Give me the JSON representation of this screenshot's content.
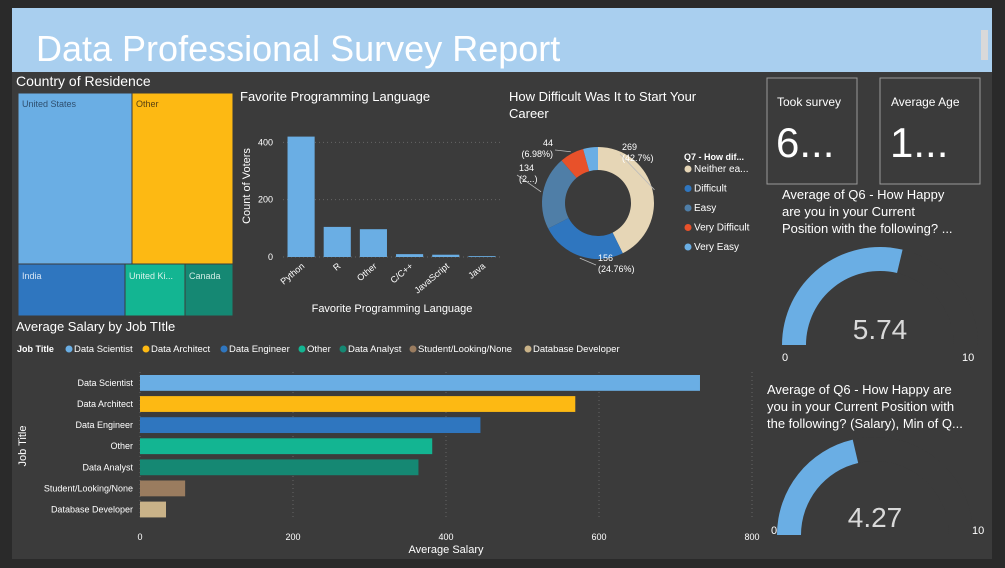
{
  "title": "Data Professional Survey Report",
  "colors": {
    "page_bg": "#2a2a2a",
    "panel_bg": "#3b3b3b",
    "title_bg": "#a9cfef",
    "text": "#ffffff",
    "light_blue": "#6aaee4",
    "yellow": "#fdb913",
    "blue": "#2f76bf",
    "teal": "#13b592",
    "dark_teal": "#158873",
    "orange_brown": "#9a7c5f",
    "beige": "#c9b288",
    "steel": "#4f7ea7",
    "red": "#e8512a",
    "cream": "#e6d6b6"
  },
  "treemap": {
    "title": "Country of Residence",
    "tiles": [
      {
        "label": "United States",
        "color": "#6aaee4"
      },
      {
        "label": "Other",
        "color": "#fdb913"
      },
      {
        "label": "India",
        "color": "#2f76bf"
      },
      {
        "label": "United Ki...",
        "color": "#13b592"
      },
      {
        "label": "Canada",
        "color": "#158873"
      }
    ]
  },
  "cards": [
    {
      "label": "Took survey",
      "value": "6..."
    },
    {
      "label": "Average Age",
      "value": "1..."
    }
  ],
  "gauges": [
    {
      "title_lines": [
        "Average of Q6 - How Happy",
        "are you in your Current",
        "Position with the following? ..."
      ],
      "value": 5.74,
      "value_text": "5.74",
      "min": 0,
      "max": 10,
      "min_text": "0",
      "max_text": "10"
    },
    {
      "title_lines": [
        "Average of Q6 - How Happy are",
        "you in your Current Position with",
        "the following? (Salary), Min of Q..."
      ],
      "value": 4.27,
      "value_text": "4.27",
      "min": 0,
      "max": 10,
      "min_text": "0",
      "max_text": "10"
    }
  ],
  "chart_data": [
    {
      "type": "bar",
      "title": "Favorite Programming Language",
      "xlabel": "Favorite Programming Language",
      "ylabel": "Count of Voters",
      "categories": [
        "Python",
        "R",
        "Other",
        "C/C++",
        "JavaScript",
        "Java"
      ],
      "values": [
        420,
        105,
        97,
        10,
        8,
        3
      ],
      "ylim": [
        0,
        450
      ],
      "yticks": [
        0,
        200,
        400
      ],
      "grid": true,
      "color": "#6aaee4"
    },
    {
      "type": "pie",
      "title": "How Difficult Was It to Start Your Career",
      "legend_title": "Q7 - How dif...",
      "legend_position": "right",
      "slices": [
        {
          "name": "Neither ea...",
          "value": 269,
          "label_lines": [
            "269",
            "(42.7%)"
          ],
          "color": "#e6d6b6"
        },
        {
          "name": "Difficult",
          "value": 156,
          "label_lines": [
            "156",
            "(24.76%)"
          ],
          "color": "#2f76bf"
        },
        {
          "name": "Easy",
          "value": 134,
          "label_lines": [
            "134",
            "(2...)"
          ],
          "color": "#4f7ea7"
        },
        {
          "name": "Very Difficult",
          "value": 44,
          "label_lines": [
            "44",
            "(6.98%)"
          ],
          "color": "#e8512a"
        },
        {
          "name": "Very Easy",
          "value": 27,
          "label_lines": [],
          "color": "#6aaee4"
        }
      ]
    },
    {
      "type": "bar",
      "orientation": "horizontal",
      "title": "Average Salary by Job TItle",
      "legend_title": "Job Title",
      "legend_position": "top",
      "xlabel": "Average Salary",
      "ylabel": "Job Title",
      "categories": [
        "Data Scientist",
        "Data Architect",
        "Data Engineer",
        "Other",
        "Data Analyst",
        "Student/Looking/None",
        "Database Developer"
      ],
      "values": [
        732,
        569,
        445,
        382,
        364,
        59,
        34
      ],
      "colors": [
        "#6aaee4",
        "#fdb913",
        "#2f76bf",
        "#13b592",
        "#158873",
        "#9a7c5f",
        "#c9b288"
      ],
      "xlim": [
        0,
        800
      ],
      "xticks": [
        0,
        200,
        400,
        600,
        800
      ],
      "grid": true
    }
  ]
}
